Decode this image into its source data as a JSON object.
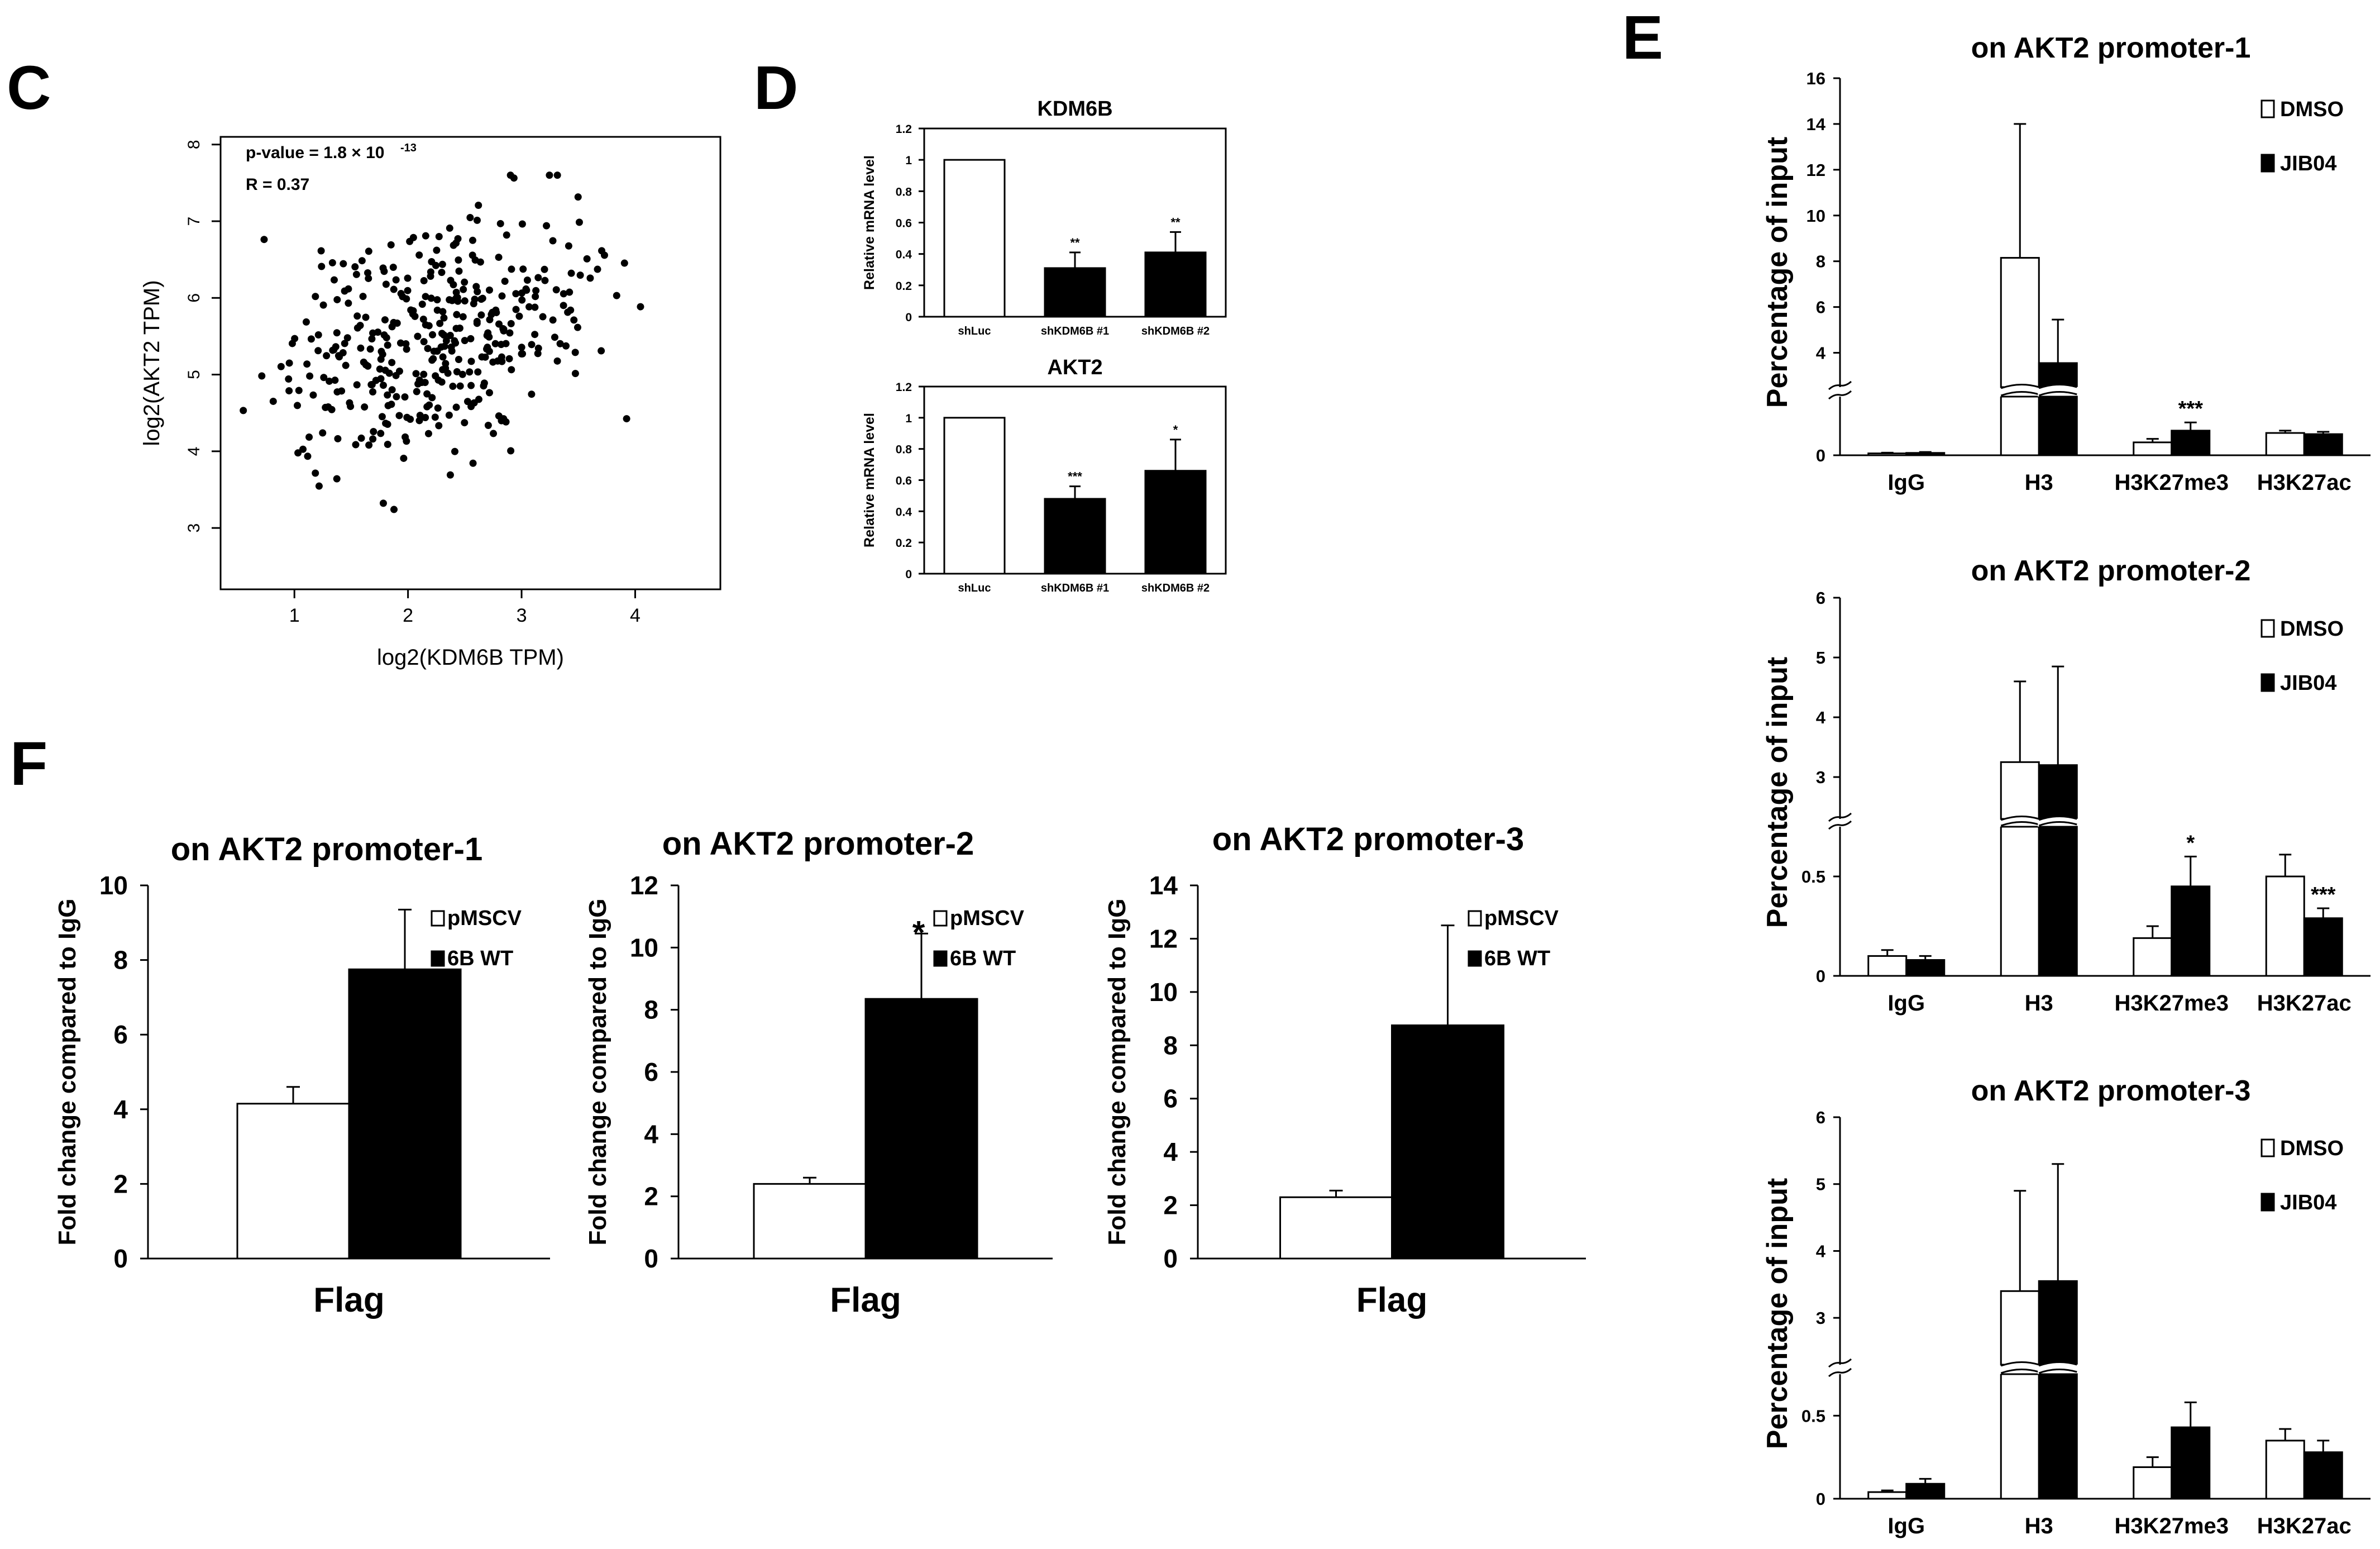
{
  "panel_labels": {
    "c": "C",
    "d": "D",
    "e": "E",
    "f": "F"
  },
  "colors": {
    "ink": "#000000",
    "paper": "#ffffff"
  },
  "chart_data": [
    {
      "id": "C",
      "type": "scatter",
      "xlabel": "log2(KDM6B TPM)",
      "ylabel": "log2(AKT2 TPM)",
      "xlim": [
        0.35,
        4.75
      ],
      "ylim": [
        2.2,
        8.1
      ],
      "xticks": [
        "1",
        "2",
        "3",
        "4"
      ],
      "yticks": [
        "3",
        "4",
        "5",
        "6",
        "7",
        "8"
      ],
      "annotation": {
        "pvalue_text": "p-value = 1.8 × 10",
        "pvalue_exp": "-13",
        "r_text": "R = 0.37"
      },
      "point_count": 380,
      "x_mean": 2.2,
      "x_sd": 0.7,
      "y_mean": 5.5,
      "y_sd": 0.85,
      "correlation": 0.37
    },
    {
      "id": "D1",
      "type": "bar",
      "title": "KDM6B",
      "ylabel": "Relative mRNA level",
      "categories": [
        "shLuc",
        "shKDM6B #1",
        "shKDM6B #2"
      ],
      "values": [
        1.0,
        0.31,
        0.41
      ],
      "errors": [
        0,
        0.1,
        0.13
      ],
      "fills": [
        "open",
        "solid",
        "solid"
      ],
      "sig": [
        "",
        "**",
        "**"
      ],
      "ylim": [
        0,
        1.2
      ],
      "yticks": [
        "0",
        "0.2",
        "0.4",
        "0.6",
        "0.8",
        "1",
        "1.2"
      ]
    },
    {
      "id": "D2",
      "type": "bar",
      "title": "AKT2",
      "ylabel": "Relative mRNA level",
      "categories": [
        "shLuc",
        "shKDM6B #1",
        "shKDM6B #2"
      ],
      "values": [
        1.0,
        0.48,
        0.66
      ],
      "errors": [
        0,
        0.08,
        0.2
      ],
      "fills": [
        "open",
        "solid",
        "solid"
      ],
      "sig": [
        "",
        "***",
        "*"
      ],
      "ylim": [
        0,
        1.2
      ],
      "yticks": [
        "0",
        "0.2",
        "0.4",
        "0.6",
        "0.8",
        "1",
        "1.2"
      ]
    },
    {
      "id": "E1",
      "type": "bar",
      "title": "on AKT2 promoter-1",
      "ylabel": "Percentage of input",
      "axis_break": true,
      "categories": [
        "IgG",
        "H3",
        "H3K27me3",
        "H3K27ac"
      ],
      "series": [
        {
          "name": "DMSO",
          "fill": "open",
          "values": [
            0.08,
            8.15,
            0.55,
            0.95
          ],
          "errors": [
            0.03,
            5.85,
            0.15,
            0.1
          ]
        },
        {
          "name": "JIB04",
          "fill": "solid",
          "values": [
            0.1,
            3.55,
            1.05,
            0.9
          ],
          "errors": [
            0.04,
            1.9,
            0.35,
            0.1
          ]
        }
      ],
      "sig": [
        [
          "",
          ""
        ],
        [
          "",
          ""
        ],
        [
          "",
          "***"
        ],
        [
          "",
          ""
        ]
      ],
      "yticks": [
        "0",
        "4",
        "6",
        "8",
        "10",
        "12",
        "14",
        "16"
      ]
    },
    {
      "id": "E2",
      "type": "bar",
      "title": "on AKT2 promoter-2",
      "ylabel": "Percentage of input",
      "axis_break": true,
      "categories": [
        "IgG",
        "H3",
        "H3K27me3",
        "H3K27ac"
      ],
      "series": [
        {
          "name": "DMSO",
          "fill": "open",
          "values": [
            0.1,
            3.25,
            0.19,
            0.5
          ],
          "errors": [
            0.03,
            1.35,
            0.06,
            0.11
          ]
        },
        {
          "name": "JIB04",
          "fill": "solid",
          "values": [
            0.08,
            3.2,
            0.45,
            0.29
          ],
          "errors": [
            0.02,
            1.65,
            0.15,
            0.05
          ]
        }
      ],
      "sig": [
        [
          "",
          ""
        ],
        [
          "",
          ""
        ],
        [
          "",
          "*"
        ],
        [
          "",
          "***"
        ]
      ],
      "yticks": [
        "0",
        "0.5",
        "3",
        "4",
        "5",
        "6"
      ]
    },
    {
      "id": "E3",
      "type": "bar",
      "title": "on AKT2 promoter-3",
      "ylabel": "Percentage of input",
      "axis_break": true,
      "categories": [
        "IgG",
        "H3",
        "H3K27me3",
        "H3K27ac"
      ],
      "series": [
        {
          "name": "DMSO",
          "fill": "open",
          "values": [
            0.04,
            3.4,
            0.19,
            0.35
          ],
          "errors": [
            0.01,
            1.5,
            0.06,
            0.07
          ]
        },
        {
          "name": "JIB04",
          "fill": "solid",
          "values": [
            0.09,
            3.55,
            0.43,
            0.28
          ],
          "errors": [
            0.03,
            1.75,
            0.15,
            0.07
          ]
        }
      ],
      "sig": [
        [
          "",
          ""
        ],
        [
          "",
          ""
        ],
        [
          "",
          ""
        ],
        [
          "",
          ""
        ]
      ],
      "yticks": [
        "0",
        "0.5",
        "3",
        "4",
        "5",
        "6"
      ]
    },
    {
      "id": "F1",
      "type": "bar",
      "title": "on AKT2 promoter-1",
      "ylabel": "Fold change compared to IgG",
      "xlabel": "Flag",
      "categories": [
        "Flag"
      ],
      "series": [
        {
          "name": "pMSCV",
          "fill": "open",
          "values": [
            4.15
          ],
          "errors": [
            0.45
          ]
        },
        {
          "name": "6B WT",
          "fill": "solid",
          "values": [
            7.75
          ],
          "errors": [
            1.6
          ]
        }
      ],
      "sig": [
        "",
        ""
      ],
      "ylim": [
        0,
        10
      ],
      "yticks": [
        "0",
        "2",
        "4",
        "6",
        "8",
        "10"
      ]
    },
    {
      "id": "F2",
      "type": "bar",
      "title": "on AKT2 promoter-2",
      "ylabel": "Fold change compared to IgG",
      "xlabel": "Flag",
      "categories": [
        "Flag"
      ],
      "series": [
        {
          "name": "pMSCV",
          "fill": "open",
          "values": [
            2.4
          ],
          "errors": [
            0.2
          ]
        },
        {
          "name": "6B WT",
          "fill": "solid",
          "values": [
            8.35
          ],
          "errors": [
            2.1
          ]
        }
      ],
      "sig": [
        "",
        "*"
      ],
      "ylim": [
        0,
        12
      ],
      "yticks": [
        "0",
        "2",
        "4",
        "6",
        "8",
        "10",
        "12"
      ]
    },
    {
      "id": "F3",
      "type": "bar",
      "title": "on AKT2 promoter-3",
      "ylabel": "Fold change compared to IgG",
      "xlabel": "Flag",
      "categories": [
        "Flag"
      ],
      "series": [
        {
          "name": "pMSCV",
          "fill": "open",
          "values": [
            2.3
          ],
          "errors": [
            0.25
          ]
        },
        {
          "name": "6B WT",
          "fill": "solid",
          "values": [
            8.75
          ],
          "errors": [
            3.75
          ]
        }
      ],
      "sig": [
        "",
        ""
      ],
      "ylim": [
        0,
        14
      ],
      "yticks": [
        "0",
        "2",
        "4",
        "6",
        "8",
        "10",
        "12",
        "14"
      ]
    }
  ]
}
